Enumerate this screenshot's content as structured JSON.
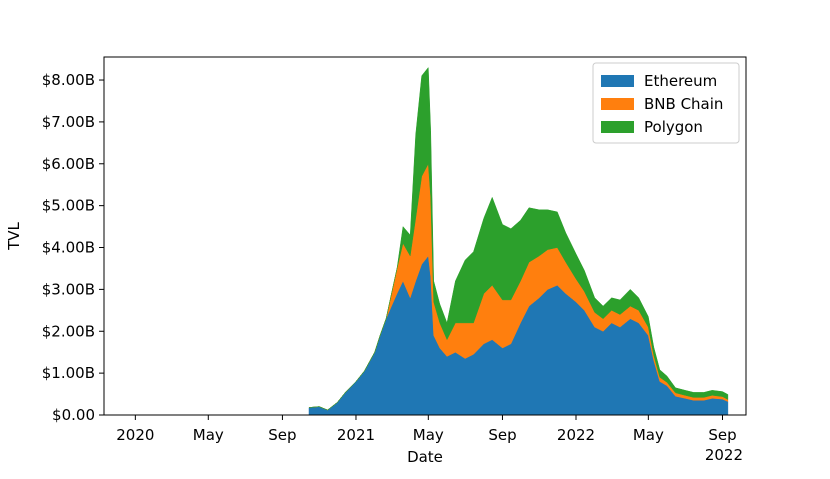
{
  "chart_data": {
    "type": "area",
    "stacked": true,
    "title": "",
    "xlabel": "Date",
    "ylabel": "TVL",
    "x_axis": {
      "type": "date",
      "range": [
        "2019-11-10",
        "2022-10-10"
      ],
      "ticks": [
        {
          "date": "2020-01-01",
          "label": "2020"
        },
        {
          "date": "2020-05-01",
          "label": "May"
        },
        {
          "date": "2020-09-01",
          "label": "Sep"
        },
        {
          "date": "2021-01-01",
          "label": "2021"
        },
        {
          "date": "2021-05-01",
          "label": "May"
        },
        {
          "date": "2021-09-01",
          "label": "Sep"
        },
        {
          "date": "2022-01-01",
          "label": "2022"
        },
        {
          "date": "2022-05-01",
          "label": "May"
        },
        {
          "date": "2022-09-01",
          "label": "Sep"
        }
      ],
      "offset_label": "2022"
    },
    "y_axis": {
      "range": [
        0,
        8.55
      ],
      "unit": "billion USD",
      "ticks": [
        {
          "value": 0,
          "label": "$0.00"
        },
        {
          "value": 1,
          "label": "$1.00B"
        },
        {
          "value": 2,
          "label": "$2.00B"
        },
        {
          "value": 3,
          "label": "$3.00B"
        },
        {
          "value": 4,
          "label": "$4.00B"
        },
        {
          "value": 5,
          "label": "$5.00B"
        },
        {
          "value": 6,
          "label": "$6.00B"
        },
        {
          "value": 7,
          "label": "$7.00B"
        },
        {
          "value": 8,
          "label": "$8.00B"
        }
      ]
    },
    "grid": false,
    "legend_position": "top-right",
    "x": [
      "2020-10-15",
      "2020-11-01",
      "2020-11-15",
      "2020-12-01",
      "2020-12-15",
      "2021-01-01",
      "2021-01-15",
      "2021-02-01",
      "2021-02-10",
      "2021-02-20",
      "2021-03-01",
      "2021-03-10",
      "2021-03-20",
      "2021-04-01",
      "2021-04-10",
      "2021-04-20",
      "2021-05-01",
      "2021-05-05",
      "2021-05-10",
      "2021-05-20",
      "2021-06-01",
      "2021-06-15",
      "2021-07-01",
      "2021-07-15",
      "2021-08-01",
      "2021-08-15",
      "2021-09-01",
      "2021-09-15",
      "2021-10-01",
      "2021-10-15",
      "2021-11-01",
      "2021-11-15",
      "2021-12-01",
      "2021-12-15",
      "2022-01-01",
      "2022-01-15",
      "2022-02-01",
      "2022-02-15",
      "2022-03-01",
      "2022-03-15",
      "2022-04-01",
      "2022-04-15",
      "2022-05-01",
      "2022-05-10",
      "2022-05-20",
      "2022-06-01",
      "2022-06-15",
      "2022-07-01",
      "2022-07-15",
      "2022-08-01",
      "2022-08-15",
      "2022-09-01",
      "2022-09-10"
    ],
    "series": [
      {
        "name": "Ethereum",
        "color": "#1f77b4",
        "values": [
          0.18,
          0.2,
          0.12,
          0.3,
          0.55,
          0.8,
          1.05,
          1.5,
          1.9,
          2.3,
          2.6,
          2.9,
          3.2,
          2.8,
          3.2,
          3.6,
          3.8,
          3.3,
          1.9,
          1.6,
          1.4,
          1.5,
          1.35,
          1.45,
          1.7,
          1.8,
          1.6,
          1.7,
          2.2,
          2.6,
          2.8,
          3.0,
          3.1,
          2.9,
          2.7,
          2.5,
          2.1,
          2.0,
          2.2,
          2.1,
          2.3,
          2.2,
          1.9,
          1.3,
          0.8,
          0.7,
          0.45,
          0.4,
          0.35,
          0.35,
          0.4,
          0.38,
          0.32
        ]
      },
      {
        "name": "BNB Chain",
        "color": "#ff7f0e",
        "values": [
          0,
          0,
          0,
          0,
          0,
          0,
          0,
          0,
          0,
          0,
          0.3,
          0.6,
          0.9,
          1.0,
          1.5,
          2.1,
          2.2,
          1.9,
          0.8,
          0.6,
          0.4,
          0.7,
          0.85,
          0.75,
          1.2,
          1.3,
          1.15,
          1.05,
          1.0,
          1.05,
          1.0,
          0.95,
          0.9,
          0.75,
          0.55,
          0.45,
          0.35,
          0.3,
          0.3,
          0.3,
          0.3,
          0.3,
          0.2,
          0.12,
          0.1,
          0.08,
          0.08,
          0.07,
          0.07,
          0.07,
          0.07,
          0.06,
          0.05
        ]
      },
      {
        "name": "Polygon",
        "color": "#2ca02c",
        "values": [
          0,
          0,
          0,
          0,
          0,
          0,
          0,
          0,
          0,
          0,
          0,
          0,
          0.4,
          0.5,
          2.0,
          2.4,
          2.3,
          1.6,
          0.5,
          0.45,
          0.4,
          1.0,
          1.5,
          1.7,
          1.8,
          2.1,
          1.8,
          1.7,
          1.45,
          1.3,
          1.1,
          0.95,
          0.85,
          0.7,
          0.6,
          0.5,
          0.35,
          0.3,
          0.3,
          0.35,
          0.4,
          0.3,
          0.25,
          0.2,
          0.18,
          0.15,
          0.12,
          0.12,
          0.12,
          0.12,
          0.12,
          0.12,
          0.12
        ]
      }
    ]
  }
}
